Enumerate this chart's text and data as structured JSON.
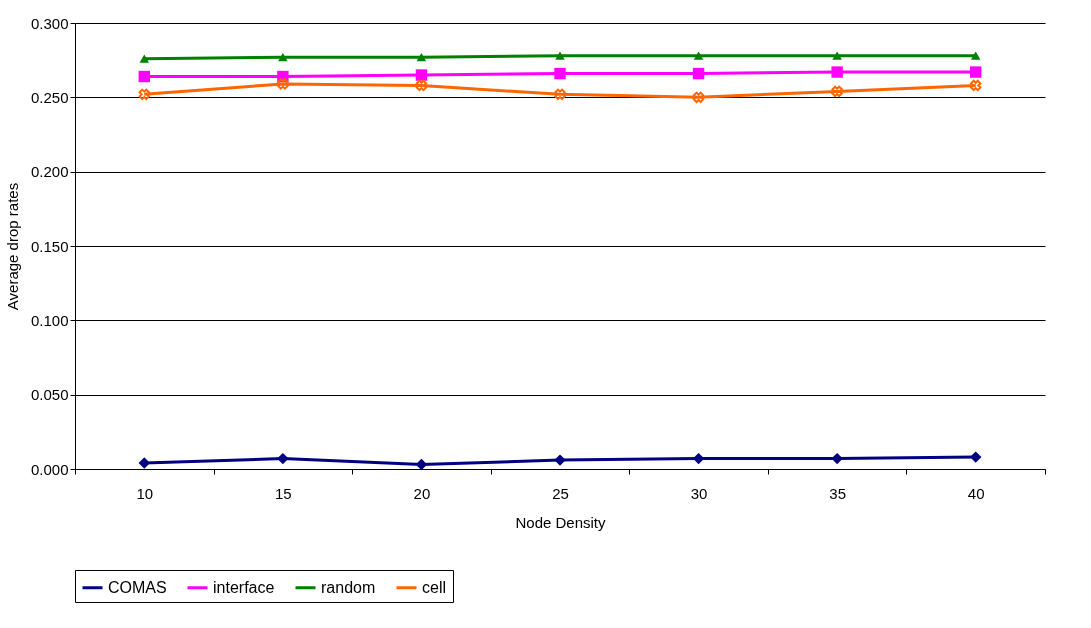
{
  "chart_data": {
    "type": "line",
    "xlabel": "Node Density",
    "ylabel": "Average drop rates",
    "categories": [
      "10",
      "15",
      "20",
      "25",
      "30",
      "35",
      "40"
    ],
    "series": [
      {
        "name": "COMAS",
        "color": "#000080",
        "marker": "diamond",
        "values": [
          0.004,
          0.007,
          0.003,
          0.006,
          0.007,
          0.007,
          0.008
        ]
      },
      {
        "name": "interface",
        "color": "#ff00ff",
        "marker": "square",
        "values": [
          0.264,
          0.264,
          0.265,
          0.266,
          0.266,
          0.267,
          0.267
        ]
      },
      {
        "name": "random",
        "color": "#008000",
        "marker": "triangle",
        "values": [
          0.276,
          0.277,
          0.277,
          0.278,
          0.278,
          0.278,
          0.278
        ]
      },
      {
        "name": "cell",
        "color": "#ff6600",
        "marker": "cross",
        "values": [
          0.252,
          0.259,
          0.258,
          0.252,
          0.25,
          0.254,
          0.258
        ]
      }
    ],
    "ylim": [
      0,
      0.3
    ],
    "yticks": [
      {
        "value": 0,
        "label": "0.000"
      },
      {
        "value": 0.05,
        "label": "0.050"
      },
      {
        "value": 0.1,
        "label": "0.100"
      },
      {
        "value": 0.15,
        "label": "0.150"
      },
      {
        "value": 0.2,
        "label": "0.200"
      },
      {
        "value": 0.25,
        "label": "0.250"
      },
      {
        "value": 0.3,
        "label": "0.300"
      }
    ],
    "grid": "y",
    "legend": "bottom"
  }
}
